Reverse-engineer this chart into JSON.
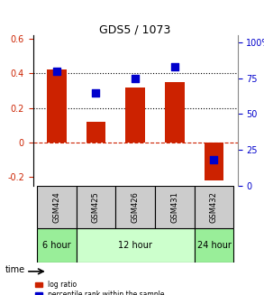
{
  "title": "GDS5 / 1073",
  "samples": [
    "GSM424",
    "GSM425",
    "GSM426",
    "GSM431",
    "GSM432"
  ],
  "log_ratio": [
    0.42,
    0.12,
    0.32,
    0.35,
    -0.22
  ],
  "percentile_rank": [
    80,
    65,
    75,
    83,
    18
  ],
  "time_groups": [
    {
      "label": "6 hour",
      "samples": [
        "GSM424"
      ],
      "color": "#aaffaa"
    },
    {
      "label": "12 hour",
      "samples": [
        "GSM425",
        "GSM426",
        "GSM431"
      ],
      "color": "#ccffcc"
    },
    {
      "label": "24 hour",
      "samples": [
        "GSM432"
      ],
      "color": "#aaffaa"
    }
  ],
  "bar_color": "#cc2200",
  "dot_color": "#0000cc",
  "ylim_left": [
    -0.25,
    0.62
  ],
  "ylim_right": [
    0,
    105
  ],
  "yticks_left": [
    -0.2,
    0.0,
    0.2,
    0.4,
    0.6
  ],
  "yticks_right": [
    0,
    25,
    50,
    75,
    100
  ],
  "ytick_labels_left": [
    "-0.2",
    "0",
    "0.2",
    "0.4",
    "0.6"
  ],
  "ytick_labels_right": [
    "0",
    "25",
    "50",
    "75",
    "100%"
  ],
  "hline_y": [
    0.0,
    0.2,
    0.4
  ],
  "hline_styles": [
    "dashed-red",
    "dotted-black",
    "dotted-black"
  ],
  "background_color": "#ffffff",
  "sample_box_color": "#cccccc"
}
